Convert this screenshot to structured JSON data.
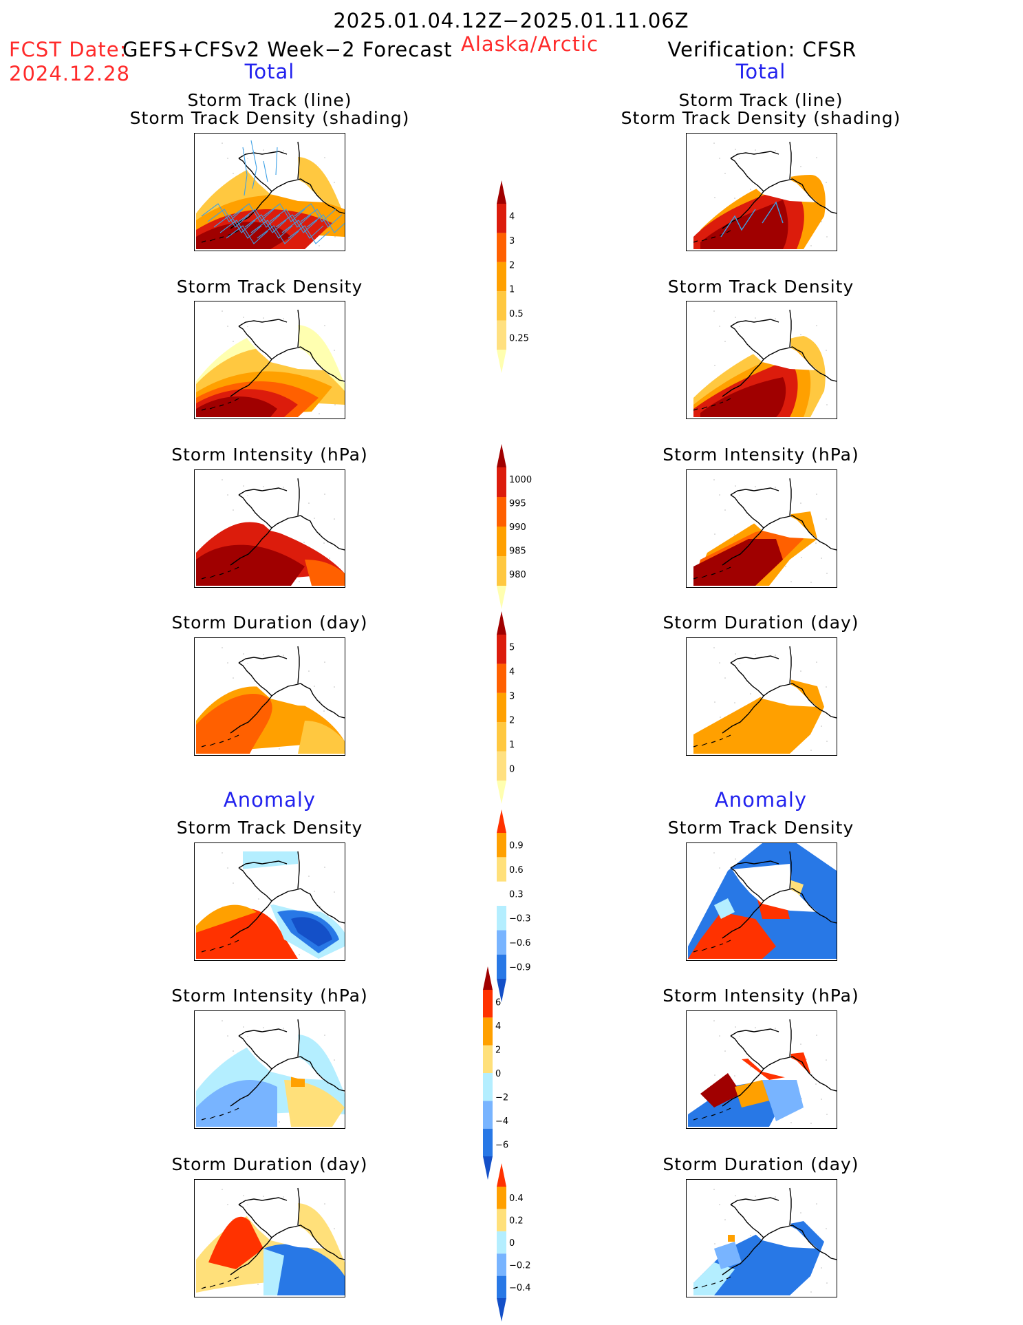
{
  "header": {
    "date_range": "2025.01.04.12Z−2025.01.11.06Z",
    "fcst_label": "FCST Date:",
    "fcst_model": "GEFS+CFSv2 Week−2 Forecast",
    "fcst_date": "2024.12.28",
    "region": "Alaska/Arctic",
    "verification": "Verification: CFSR"
  },
  "sections": {
    "total_left": "Total",
    "total_right": "Total",
    "anomaly_left": "Anomaly",
    "anomaly_right": "Anomaly"
  },
  "panel_titles": {
    "track_line": "Storm Track (line)",
    "track_shading": "Storm Track Density (shading)",
    "density": "Storm Track Density",
    "intensity": "Storm Intensity (hPa)",
    "duration": "Storm Duration (day)"
  },
  "colors": {
    "pale_yellow": "#ffffb0",
    "light_orange": "#ffc840",
    "orange": "#ffa000",
    "dark_orange": "#ff6000",
    "red": "#dc1c0c",
    "dark_red": "#a00000",
    "light_blue": "#b4eeff",
    "mid_blue": "#78b4ff",
    "blue": "#2878e6",
    "dark_blue": "#1450c8",
    "track_line": "#3ca0e6",
    "anom_yellow": "#ffe07a",
    "anom_orange": "#ffa000",
    "anom_red": "#ff3200",
    "anom_dark_red": "#a00000"
  },
  "chart_data": [
    {
      "type": "colorbar",
      "name": "storm_track_density_total",
      "ticks": [
        "4",
        "3",
        "2",
        "1",
        "0.5",
        "0.25"
      ],
      "levels": [
        0.25,
        0.5,
        1,
        2,
        3,
        4
      ],
      "colors": [
        "#ffffb0",
        "#ffe080",
        "#ffc840",
        "#ffa000",
        "#ff6000",
        "#dc1c0c",
        "#a00000"
      ]
    },
    {
      "type": "colorbar",
      "name": "storm_intensity_total",
      "ticks": [
        "1000",
        "995",
        "990",
        "985",
        "980"
      ],
      "levels": [
        1000,
        995,
        990,
        985,
        980
      ],
      "colors": [
        "#ffffb0",
        "#ffc840",
        "#ffa000",
        "#ff6000",
        "#dc1c0c",
        "#a00000"
      ]
    },
    {
      "type": "colorbar",
      "name": "storm_duration_total",
      "ticks": [
        "5",
        "4",
        "3",
        "2",
        "1",
        "0"
      ],
      "levels": [
        0,
        1,
        2,
        3,
        4,
        5
      ],
      "colors": [
        "#ffffb0",
        "#ffe080",
        "#ffc840",
        "#ffa000",
        "#ff6000",
        "#dc1c0c",
        "#a00000"
      ]
    },
    {
      "type": "colorbar",
      "name": "storm_track_density_anomaly",
      "ticks": [
        "0.9",
        "0.6",
        "0.3",
        "−0.3",
        "−0.6",
        "−0.9"
      ],
      "levels": [
        -0.9,
        -0.6,
        -0.3,
        0.3,
        0.6,
        0.9
      ],
      "colors": [
        "#1450c8",
        "#2878e6",
        "#78b4ff",
        "#b4eeff",
        "#ffffff",
        "#ffe07a",
        "#ffa000",
        "#ff3200"
      ]
    },
    {
      "type": "colorbar",
      "name": "storm_intensity_anomaly",
      "ticks": [
        "6",
        "4",
        "2",
        "0",
        "−2",
        "−4",
        "−6"
      ],
      "levels": [
        -6,
        -4,
        -2,
        0,
        2,
        4,
        6
      ],
      "colors": [
        "#1450c8",
        "#2878e6",
        "#78b4ff",
        "#b4eeff",
        "#ffe07a",
        "#ffa000",
        "#ff3200",
        "#a00000"
      ]
    },
    {
      "type": "colorbar",
      "name": "storm_duration_anomaly",
      "ticks": [
        "0.4",
        "0.2",
        "0",
        "−0.2",
        "−0.4"
      ],
      "levels": [
        -0.4,
        -0.2,
        0,
        0.2,
        0.4
      ],
      "colors": [
        "#1450c8",
        "#2878e6",
        "#78b4ff",
        "#b4eeff",
        "#ffe07a",
        "#ffa000",
        "#ff3200"
      ]
    }
  ]
}
